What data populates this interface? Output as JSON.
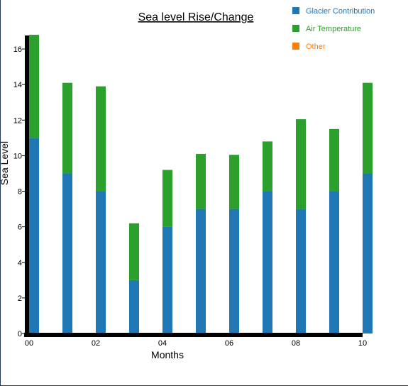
{
  "chart_data": {
    "type": "bar",
    "stacked": true,
    "title": "Sea level Rise/Change",
    "xlabel": "Months",
    "ylabel": "Sea Level",
    "categories": [
      "00",
      "01",
      "02",
      "03",
      "04",
      "05",
      "06",
      "07",
      "08",
      "09",
      "10"
    ],
    "x_tick_labels": [
      "00",
      "02",
      "04",
      "06",
      "08",
      "10"
    ],
    "y_tick_labels": [
      "0",
      "2",
      "4",
      "6",
      "8",
      "10",
      "12",
      "14",
      "16"
    ],
    "ylim": [
      0,
      17
    ],
    "series": [
      {
        "name": "Glacier Contribution",
        "color": "#1f77b4",
        "values": [
          11,
          9,
          8,
          3,
          6,
          7,
          7,
          8,
          7,
          8,
          9
        ]
      },
      {
        "name": "Air Temperature",
        "color": "#2ca02c",
        "values": [
          5.8,
          5.1,
          5.9,
          3.2,
          3.2,
          3.1,
          3.05,
          2.8,
          5.05,
          3.5,
          5.1
        ]
      },
      {
        "name": "Other",
        "color": "#ff7f0e",
        "values": [
          0,
          0,
          0,
          0,
          0,
          0,
          0,
          0,
          0,
          0,
          0
        ]
      }
    ],
    "legend_position": "top-right",
    "grid": false
  }
}
